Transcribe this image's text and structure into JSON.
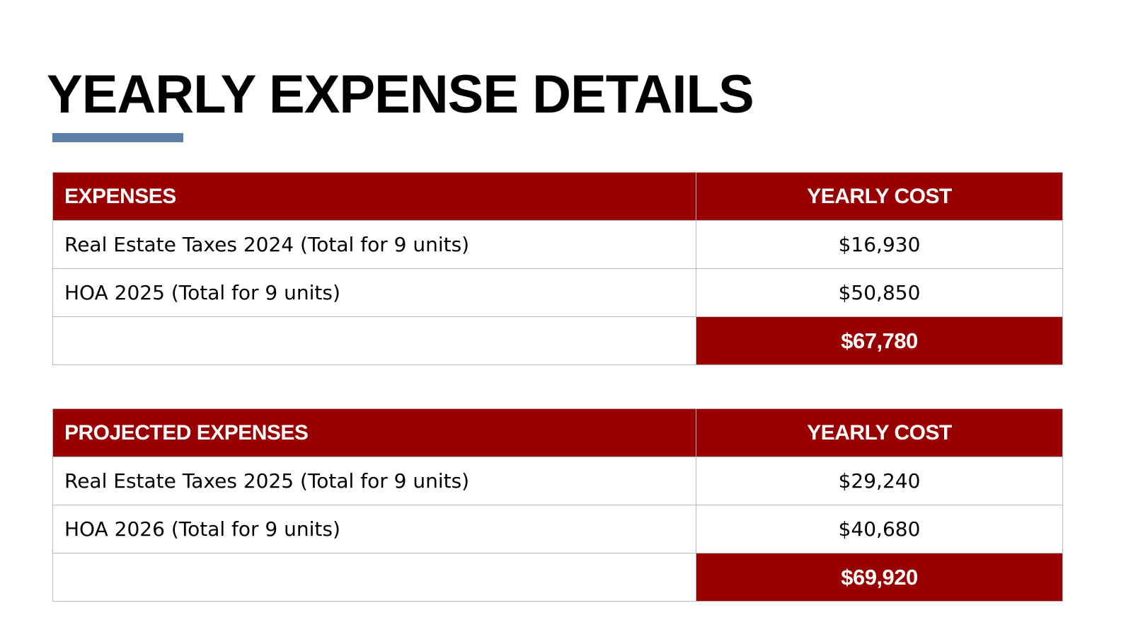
{
  "title": "YEARLY EXPENSE DETAILS",
  "colors": {
    "header_bg": "#990000",
    "header_text": "#ffffff",
    "accent_underline": "#5b7fa8",
    "border": "#b8b8b8"
  },
  "tables": [
    {
      "headers": [
        "EXPENSES",
        "YEARLY COST"
      ],
      "rows": [
        {
          "label": "Real Estate Taxes 2024 (Total for 9 units)",
          "value": "$16,930"
        },
        {
          "label": "HOA 2025 (Total for 9 units)",
          "value": "$50,850"
        }
      ],
      "total": "$67,780"
    },
    {
      "headers": [
        "PROJECTED EXPENSES",
        "YEARLY COST"
      ],
      "rows": [
        {
          "label": "Real Estate Taxes 2025 (Total for 9 units)",
          "value": "$29,240"
        },
        {
          "label": "HOA 2026 (Total for 9 units)",
          "value": "$40,680"
        }
      ],
      "total": "$69,920"
    }
  ]
}
